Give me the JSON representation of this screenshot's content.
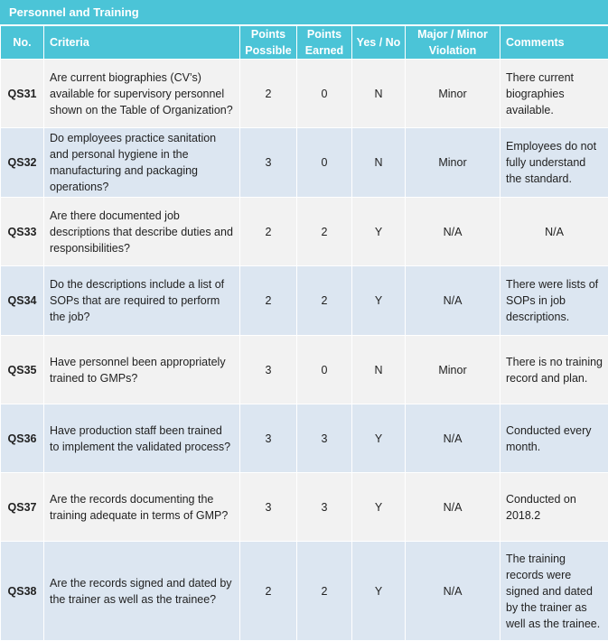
{
  "header": {
    "title": "Personnel and Training"
  },
  "table": {
    "columns": [
      "No.",
      "Criteria",
      "Points Possible",
      "Points Earned",
      "Yes / No",
      "Major / Minor Violation",
      "Comments"
    ],
    "rows": [
      [
        "QS31",
        "Are current biographies (CV’s) available for supervisory personnel shown on the Table of Organization?",
        2,
        0,
        "N",
        "Minor",
        "There current biographies available."
      ],
      [
        "QS32",
        "Do employees practice sanitation and personal hygiene in the manufacturing and packaging operations?",
        3,
        0,
        "N",
        "Minor",
        "Employees do not fully understand the standard."
      ],
      [
        "QS33",
        "Are there documented job descriptions that describe duties and responsibilities?",
        2,
        2,
        "Y",
        "N/A",
        "N/A"
      ],
      [
        "QS34",
        "Do the descriptions include a list of SOPs that are required to perform the job?",
        2,
        2,
        "Y",
        "N/A",
        "There were lists of SOPs in job descriptions."
      ],
      [
        "QS35",
        "Have personnel been appropriately trained to GMPs?",
        3,
        0,
        "N",
        "Minor",
        "There is no training record and plan."
      ],
      [
        "QS36",
        "Have production staff been trained to implement the validated process?",
        3,
        3,
        "Y",
        "N/A",
        "Conducted every month."
      ],
      [
        "QS37",
        "Are the records documenting the training adequate in terms of GMP?",
        3,
        3,
        "Y",
        "N/A",
        "Conducted on 2018.2"
      ],
      [
        "QS38",
        "Are the records signed and dated by the trainer as well as the trainee?",
        2,
        2,
        "Y",
        "N/A",
        "The training records were signed and dated by the trainer as well as the trainee."
      ]
    ]
  }
}
